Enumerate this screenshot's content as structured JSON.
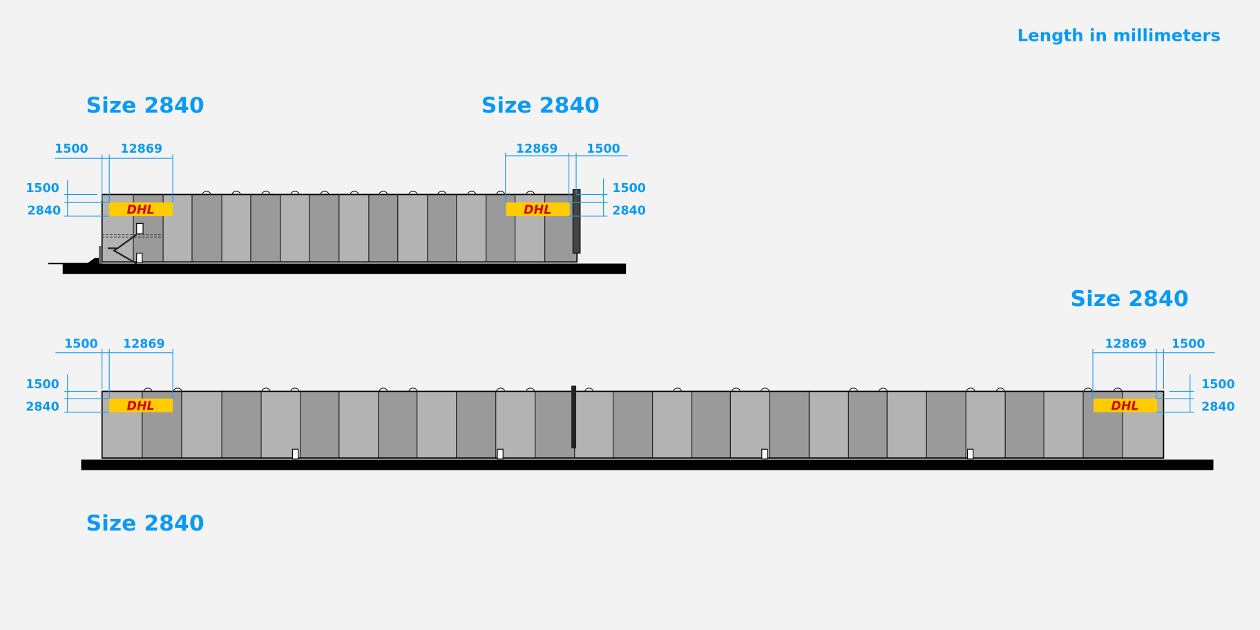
{
  "unit_note": "Length in millimeters",
  "colors": {
    "accent": "#0a9af5",
    "logo_bg": "#ffcc00",
    "logo_text": "#d40511",
    "panel_light": "#b3b3b3",
    "panel_dark": "#9a9a9a"
  },
  "views": [
    {
      "label_left": "Size 2840",
      "label_right": "Size 2840",
      "dims": {
        "left_h1": "1500",
        "left_h2": "12869",
        "right_h1": "12869",
        "right_h2": "1500",
        "left_v1": "1500",
        "left_v2": "2840",
        "right_v1": "1500",
        "right_v2": "2840"
      },
      "logo_text": "DHL"
    },
    {
      "label_left": "Size 2840",
      "label_right": "Size 2840",
      "dims": {
        "left_h1": "1500",
        "left_h2": "12869",
        "right_h1": "12869",
        "right_h2": "1500",
        "left_v1": "1500",
        "left_v2": "2840",
        "right_v1": "1500",
        "right_v2": "2840"
      },
      "logo_text": "DHL"
    }
  ]
}
